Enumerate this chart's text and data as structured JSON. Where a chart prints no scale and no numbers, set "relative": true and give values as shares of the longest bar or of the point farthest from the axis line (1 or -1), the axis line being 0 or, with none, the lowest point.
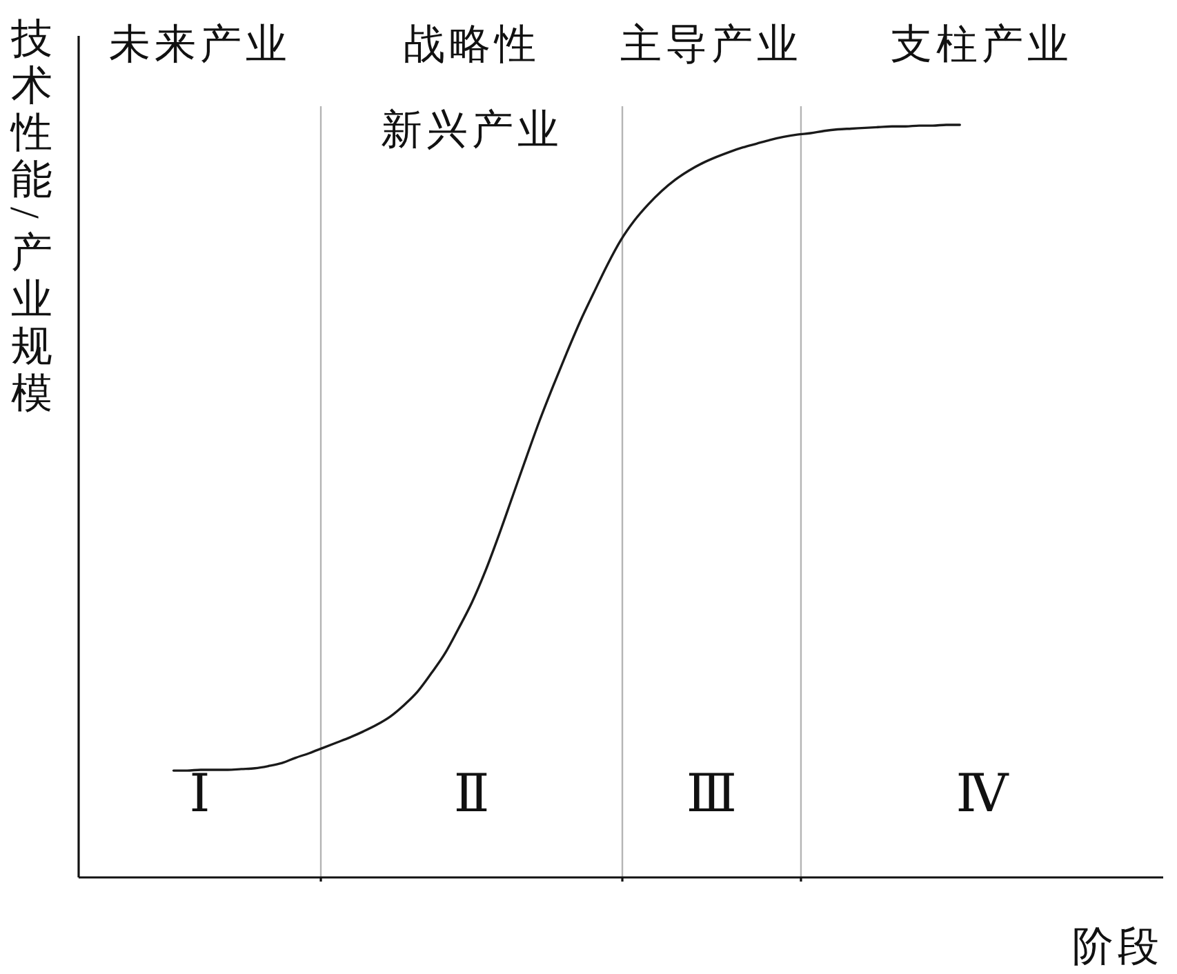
{
  "chart_data": {
    "type": "line",
    "relative": true,
    "xlabel": "阶段",
    "ylabel": "技术性能/产业规模",
    "categories": [
      null,
      null,
      null,
      null,
      null,
      null,
      null,
      null,
      null,
      null,
      null,
      null,
      null,
      null,
      null,
      null,
      null,
      null,
      null,
      null,
      null,
      null,
      null,
      null,
      null,
      null,
      null,
      null,
      null,
      null,
      null,
      null,
      null,
      null,
      null,
      null,
      null,
      null,
      null,
      null,
      null,
      null,
      null,
      null,
      null,
      null,
      null,
      null,
      null,
      null,
      null,
      null,
      null,
      null,
      null,
      null,
      null,
      null,
      null,
      null,
      null,
      null,
      null,
      null,
      null,
      null,
      null,
      null,
      null,
      null,
      null,
      null,
      null,
      null,
      null,
      null,
      null,
      null,
      null,
      null,
      null
    ],
    "values": [
      null,
      null,
      null,
      null,
      null,
      null,
      null,
      0.142,
      0.142,
      0.143,
      0.143,
      0.143,
      0.144,
      0.145,
      0.148,
      0.152,
      0.159,
      0.165,
      0.172,
      0.179,
      0.186,
      0.194,
      0.203,
      0.214,
      0.229,
      0.247,
      0.271,
      0.297,
      0.33,
      0.365,
      0.407,
      0.455,
      0.506,
      0.557,
      0.607,
      0.653,
      0.697,
      0.739,
      0.777,
      0.814,
      0.847,
      0.873,
      0.894,
      0.912,
      0.927,
      0.939,
      0.949,
      0.957,
      0.964,
      0.97,
      0.975,
      0.98,
      0.984,
      0.987,
      0.989,
      0.992,
      0.994,
      0.995,
      0.996,
      0.997,
      0.998,
      0.998,
      0.999,
      0.999,
      1.0,
      1.0,
      null,
      null,
      null,
      null,
      null,
      null,
      null,
      null,
      null,
      null,
      null,
      null,
      null,
      null,
      null
    ],
    "color": "#1a1a1a",
    "line_style": "solid",
    "annotations": [
      "未来产业",
      "战略性新兴产业",
      "主导产业",
      "支柱产业",
      "Ⅰ",
      "Ⅱ",
      "Ⅲ",
      "Ⅳ"
    ]
  }
}
